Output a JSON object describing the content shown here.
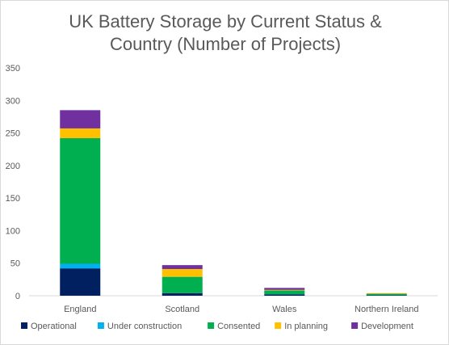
{
  "chart_data": {
    "type": "bar",
    "stacked": true,
    "title_line1": "UK Battery Storage by Current Status &",
    "title_line2": "Country (Number of Projects)",
    "categories": [
      "England",
      "Scotland",
      "Wales",
      "Northern Ireland"
    ],
    "series": [
      {
        "name": "Operational",
        "color": "#002060",
        "values": [
          42,
          4,
          2,
          1
        ]
      },
      {
        "name": "Under construction",
        "color": "#00b0f0",
        "values": [
          7,
          0,
          0,
          0
        ]
      },
      {
        "name": "Consented",
        "color": "#00b050",
        "values": [
          193,
          25,
          6,
          2
        ]
      },
      {
        "name": "In planning",
        "color": "#ffc000",
        "values": [
          15,
          12,
          1,
          1
        ]
      },
      {
        "name": "Development",
        "color": "#7030a0",
        "values": [
          28,
          6,
          3,
          0
        ]
      }
    ],
    "ylim": [
      0,
      350
    ],
    "yticks": [
      "0",
      "50",
      "100",
      "150",
      "200",
      "250",
      "300",
      "350"
    ],
    "legend": "bottom",
    "grid": false
  }
}
